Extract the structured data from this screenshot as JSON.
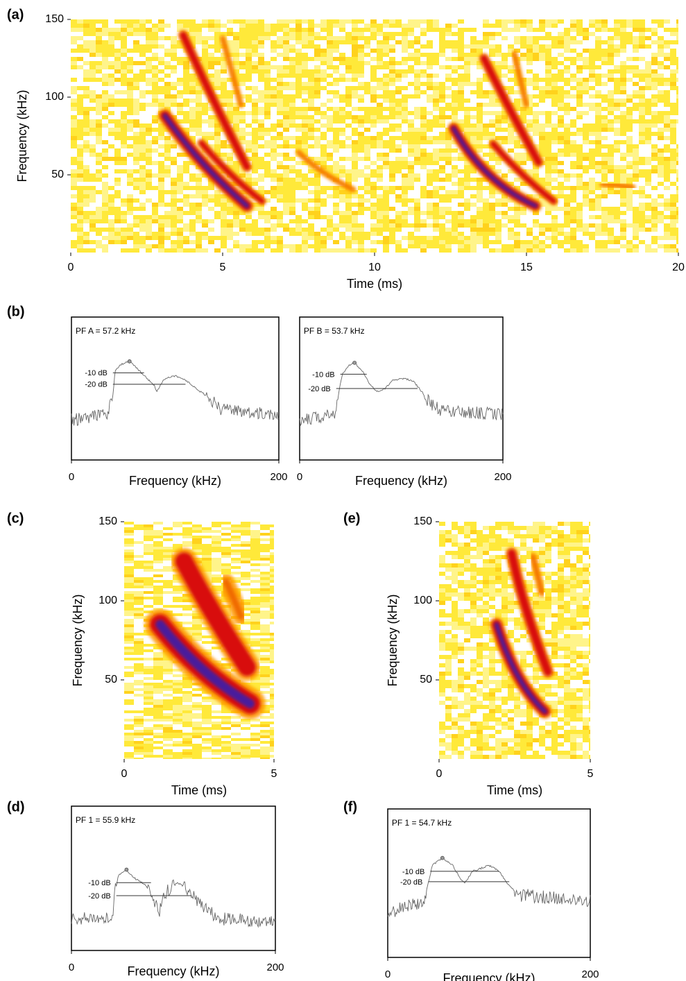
{
  "chart_data": [
    {
      "type": "spectrogram",
      "panel_label": "(a)",
      "xlabel": "Time (ms)",
      "ylabel": "Frequency (kHz)",
      "xlim": [
        0,
        20
      ],
      "ylim": [
        0,
        150
      ],
      "xticks": [
        0,
        5,
        10,
        15,
        20
      ],
      "yticks": [
        50,
        100,
        150
      ]
    },
    {
      "type": "spectrum",
      "panel_label": "(b)",
      "annotation": "PF A = 57.2 kHz",
      "xlabel": "Frequency (kHz)",
      "xlim": [
        0,
        200
      ],
      "xticks": [
        0,
        200
      ],
      "level_labels": [
        "-10 dB",
        "-20 dB"
      ]
    },
    {
      "type": "spectrum",
      "annotation": "PF B = 53.7 kHz",
      "xlabel": "Frequency (kHz)",
      "xlim": [
        0,
        200
      ],
      "xticks": [
        0,
        200
      ],
      "level_labels": [
        "-10 dB",
        "-20 dB"
      ]
    },
    {
      "type": "spectrogram",
      "panel_label": "(c)",
      "xlabel": "Time (ms)",
      "ylabel": "Frequency (kHz)",
      "xlim": [
        0,
        5
      ],
      "ylim": [
        0,
        150
      ],
      "xticks": [
        0,
        5
      ],
      "yticks": [
        50,
        100,
        150
      ]
    },
    {
      "type": "spectrum",
      "panel_label": "(d)",
      "annotation": "PF 1 = 55.9 kHz",
      "xlabel": "Frequency (kHz)",
      "xlim": [
        0,
        200
      ],
      "xticks": [
        0,
        200
      ],
      "level_labels": [
        "-10 dB",
        "-20 dB"
      ]
    },
    {
      "type": "spectrogram",
      "panel_label": "(e)",
      "xlabel": "Time (ms)",
      "ylabel": "Frequency (kHz)",
      "xlim": [
        0,
        5
      ],
      "ylim": [
        0,
        150
      ],
      "xticks": [
        0,
        5
      ],
      "yticks": [
        50,
        100,
        150
      ]
    },
    {
      "type": "spectrum",
      "panel_label": "(f)",
      "annotation": "PF 1 = 54.7 kHz",
      "xlabel": "Frequency (kHz)",
      "xlim": [
        0,
        200
      ],
      "xticks": [
        0,
        200
      ],
      "level_labels": [
        "-10 dB",
        "-20 dB"
      ]
    }
  ]
}
